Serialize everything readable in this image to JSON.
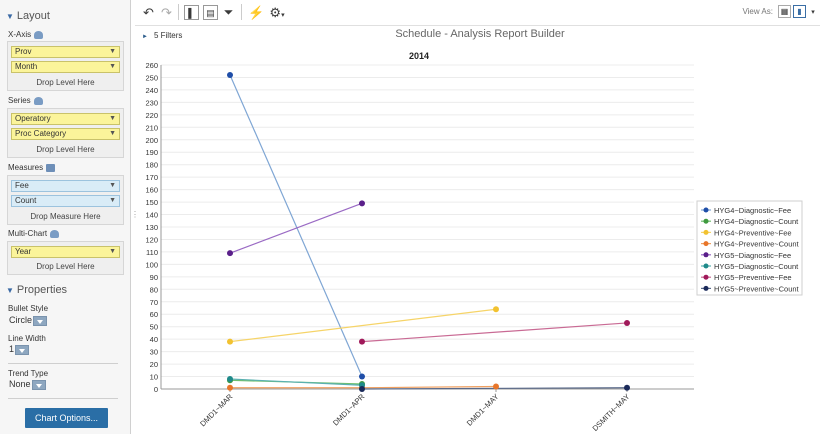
{
  "left_panel": {
    "layout_header": "Layout",
    "xaxis": {
      "label": "X-Axis",
      "fields": [
        "Prov",
        "Month"
      ],
      "drop_text": "Drop Level Here"
    },
    "series": {
      "label": "Series",
      "fields": [
        "Operatory",
        "Proc Category"
      ],
      "drop_text": "Drop Level Here"
    },
    "measures": {
      "label": "Measures",
      "fields": [
        "Fee",
        "Count"
      ],
      "drop_text": "Drop Measure Here"
    },
    "multichart": {
      "label": "Multi-Chart",
      "fields": [
        "Year"
      ],
      "drop_text": "Drop Level Here"
    },
    "properties_header": "Properties",
    "bullet_style": {
      "label": "Bullet Style",
      "value": "Circle"
    },
    "line_width": {
      "label": "Line Width",
      "value": "1"
    },
    "trend_type": {
      "label": "Trend Type",
      "value": "None"
    },
    "chart_options_label": "Chart Options..."
  },
  "toolbar": {
    "view_as_label": "View As:",
    "icons": [
      "undo-icon",
      "redo-icon",
      "layout-panel-icon",
      "table-layout-icon",
      "filter-icon",
      "run-icon",
      "settings-icon",
      "grid-view-icon",
      "chart-view-icon"
    ]
  },
  "filters": {
    "label": "5 Filters"
  },
  "report_title": "Schedule - Analysis Report Builder",
  "chart_data": {
    "type": "line",
    "title": "2014",
    "categories": [
      "DMD1~MAR",
      "DMD1~APR",
      "DMD1~MAY",
      "DSMITH~MAY"
    ],
    "ylim": [
      0,
      260
    ],
    "ytick_step": 10,
    "grid": true,
    "legend_position": "right",
    "series": [
      {
        "name": "HYG4~Diagnostic~Fee",
        "color": "#1f4ea8",
        "line": "#7fa6d4",
        "values": [
          252,
          10,
          null,
          null
        ]
      },
      {
        "name": "HYG4~Diagnostic~Count",
        "color": "#3f9a3f",
        "line": "#6fbf6f",
        "values": [
          7,
          4,
          null,
          null
        ]
      },
      {
        "name": "HYG4~Preventive~Fee",
        "color": "#f2c230",
        "line": "#f6d468",
        "values": [
          38,
          null,
          64,
          null
        ]
      },
      {
        "name": "HYG4~Preventive~Count",
        "color": "#e8762a",
        "line": "#f0a060",
        "values": [
          1,
          1,
          2,
          null
        ]
      },
      {
        "name": "HYG5~Diagnostic~Fee",
        "color": "#5a1f8a",
        "line": "#9a6ac4",
        "values": [
          109,
          149,
          null,
          null
        ]
      },
      {
        "name": "HYG5~Diagnostic~Count",
        "color": "#1f8a8a",
        "line": "#5ab0b0",
        "values": [
          8,
          3,
          null,
          null
        ]
      },
      {
        "name": "HYG5~Preventive~Fee",
        "color": "#a0195a",
        "line": "#c96a94",
        "values": [
          null,
          38,
          null,
          53
        ]
      },
      {
        "name": "HYG5~Preventive~Count",
        "color": "#1a2a5a",
        "line": "#5a6a8a",
        "values": [
          null,
          0,
          null,
          1
        ]
      }
    ]
  }
}
